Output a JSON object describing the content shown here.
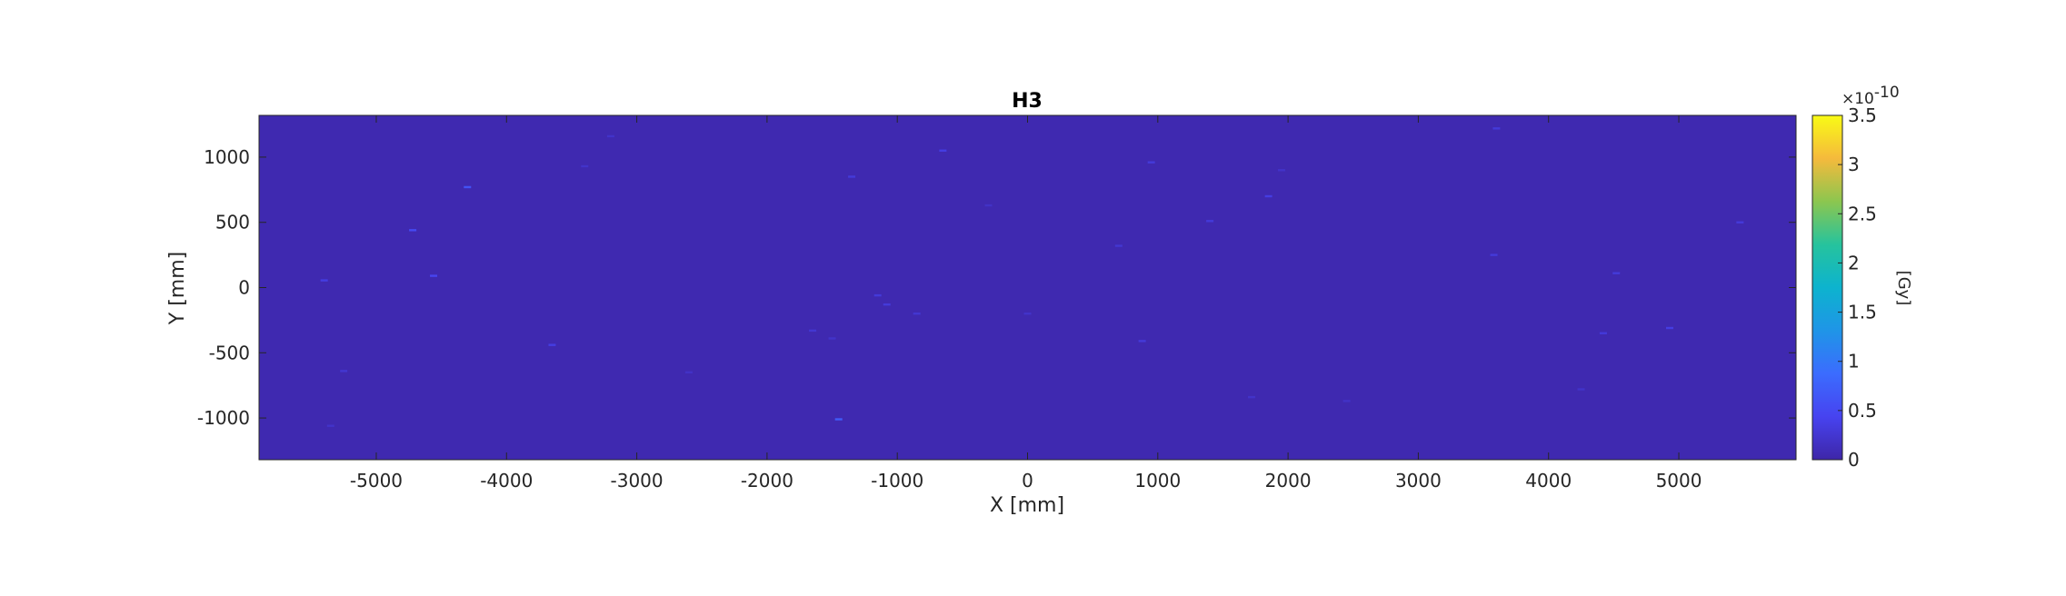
{
  "chart_data": {
    "type": "heatmap",
    "title": "H3",
    "xlabel": "X [mm]",
    "ylabel": "Y [mm]",
    "xlim": [
      -5900,
      5900
    ],
    "ylim": [
      -1320,
      1320
    ],
    "xticks": [
      -5000,
      -4000,
      -3000,
      -2000,
      -1000,
      0,
      1000,
      2000,
      3000,
      4000,
      5000
    ],
    "yticks": [
      -1000,
      -500,
      0,
      500,
      1000
    ],
    "colorbar": {
      "label": "[Gy]",
      "exponent_base": "×10",
      "exponent_power": "-10",
      "limits": [
        0,
        3.5
      ],
      "ticks": [
        0,
        0.5,
        1,
        1.5,
        2,
        2.5,
        3,
        3.5
      ],
      "tick_labels": [
        "0",
        "0.5",
        "1",
        "1.5",
        "2",
        "2.5",
        "3",
        "3.5"
      ],
      "colormap": "parula"
    },
    "background_value": 0.05,
    "background_color": "#3e26a8",
    "hotspots": [
      {
        "x": -4300,
        "y": 770,
        "v": 0.6
      },
      {
        "x": -4720,
        "y": 440,
        "v": 0.5
      },
      {
        "x": -4560,
        "y": 90,
        "v": 0.45
      },
      {
        "x": -5400,
        "y": 55,
        "v": 0.35
      },
      {
        "x": -3650,
        "y": -440,
        "v": 0.35
      },
      {
        "x": -5250,
        "y": -640,
        "v": 0.25
      },
      {
        "x": -5350,
        "y": -1060,
        "v": 0.2
      },
      {
        "x": -3200,
        "y": 1160,
        "v": 0.2
      },
      {
        "x": -3400,
        "y": 930,
        "v": 0.2
      },
      {
        "x": -1450,
        "y": -1010,
        "v": 0.7
      },
      {
        "x": -1350,
        "y": 850,
        "v": 0.3
      },
      {
        "x": -650,
        "y": 1050,
        "v": 0.35
      },
      {
        "x": -1150,
        "y": -60,
        "v": 0.3
      },
      {
        "x": -1080,
        "y": -130,
        "v": 0.3
      },
      {
        "x": -850,
        "y": -200,
        "v": 0.25
      },
      {
        "x": -1650,
        "y": -330,
        "v": 0.25
      },
      {
        "x": -1500,
        "y": -390,
        "v": 0.2
      },
      {
        "x": 950,
        "y": 960,
        "v": 0.3
      },
      {
        "x": 1850,
        "y": 700,
        "v": 0.35
      },
      {
        "x": 1400,
        "y": 510,
        "v": 0.3
      },
      {
        "x": 700,
        "y": 320,
        "v": 0.25
      },
      {
        "x": 880,
        "y": -410,
        "v": 0.3
      },
      {
        "x": 1720,
        "y": -840,
        "v": 0.2
      },
      {
        "x": 0,
        "y": -200,
        "v": 0.2
      },
      {
        "x": 3600,
        "y": 1220,
        "v": 0.3
      },
      {
        "x": 3580,
        "y": 250,
        "v": 0.3
      },
      {
        "x": 4520,
        "y": 110,
        "v": 0.3
      },
      {
        "x": 4930,
        "y": -310,
        "v": 0.35
      },
      {
        "x": 4420,
        "y": -350,
        "v": 0.3
      },
      {
        "x": 5470,
        "y": 500,
        "v": 0.3
      },
      {
        "x": 4250,
        "y": -780,
        "v": 0.2
      },
      {
        "x": 1950,
        "y": 900,
        "v": 0.2
      },
      {
        "x": 2450,
        "y": -870,
        "v": 0.18
      },
      {
        "x": -2600,
        "y": -650,
        "v": 0.18
      },
      {
        "x": -300,
        "y": 630,
        "v": 0.18
      }
    ]
  }
}
